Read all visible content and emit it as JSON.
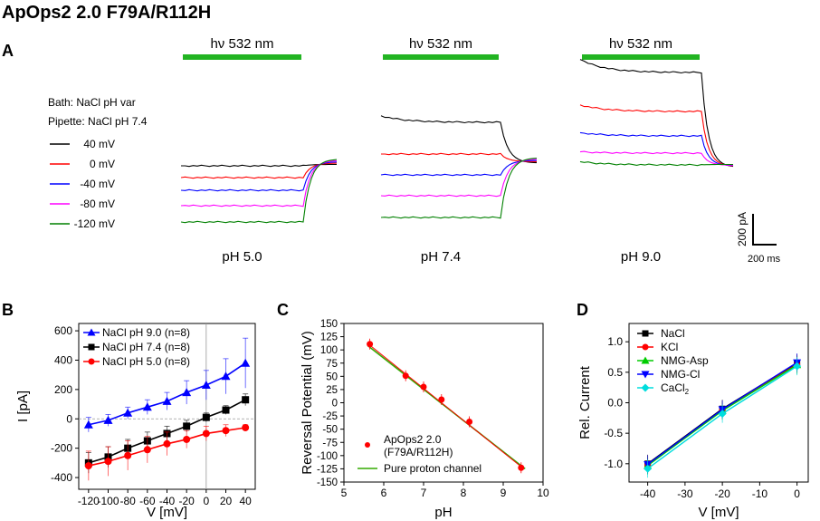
{
  "title": "ApOps2 2.0 F79A/R112H",
  "panelA": {
    "label": "A",
    "light_label": "hν 532 nm",
    "bath": "Bath: NaCl pH var",
    "pipette": "Pipette: NaCl pH 7.4",
    "legend": [
      {
        "label": "40 mV",
        "color": "#000000"
      },
      {
        "label": "0 mV",
        "color": "#ff0000"
      },
      {
        "label": "-40 mV",
        "color": "#0000ff"
      },
      {
        "label": "-80 mV",
        "color": "#ff00ff"
      },
      {
        "label": "-120 mV",
        "color": "#008000"
      }
    ],
    "ph_labels": [
      "pH 5.0",
      "pH 7.4",
      "pH 9.0"
    ],
    "scale_y": "200 pA",
    "scale_x": "200 ms",
    "traces": [
      {
        "ph": "pH 5.0",
        "ss": [
          5,
          -10,
          -25,
          -40,
          -55
        ],
        "peak": [
          5,
          -10,
          -25,
          -40,
          -55
        ],
        "end": [
          5,
          0,
          -5,
          -10,
          -15
        ]
      },
      {
        "ph": "pH 7.4",
        "ss": [
          50,
          20,
          -5,
          -30,
          -55
        ],
        "peak": [
          60,
          20,
          -5,
          -30,
          -55
        ],
        "end": [
          10,
          5,
          0,
          -5,
          -10
        ]
      },
      {
        "ph": "pH 9.0",
        "ss": [
          80,
          45,
          25,
          10,
          -5
        ],
        "peak": [
          100,
          55,
          30,
          12,
          0
        ],
        "end": [
          5,
          2,
          0,
          -2,
          -5
        ]
      }
    ]
  },
  "chart_data": [
    {
      "type": "line",
      "panel": "B",
      "xlabel": "V [mV]",
      "ylabel": "I [pA]",
      "xlim": [
        -130,
        50
      ],
      "ylim": [
        -480,
        650
      ],
      "xticks": [
        "-120",
        "-100",
        "-80",
        "-60",
        "-40",
        "-20",
        "0",
        "20",
        "40"
      ],
      "yticks": [
        "-400",
        "-200",
        "0",
        "200",
        "400",
        "600"
      ],
      "x": [
        -120,
        -100,
        -80,
        -60,
        -40,
        -20,
        0,
        20,
        40
      ],
      "series": [
        {
          "name": "NaCl pH 9.0 (n=8)",
          "color": "#0000ff",
          "marker": "triangle",
          "values": [
            -40,
            -10,
            40,
            80,
            120,
            180,
            230,
            290,
            380
          ],
          "err": [
            50,
            40,
            40,
            50,
            60,
            80,
            100,
            120,
            170
          ]
        },
        {
          "name": "NaCl pH 7.4 (n=8)",
          "color": "#000000",
          "marker": "square",
          "values": [
            -300,
            -260,
            -200,
            -150,
            -100,
            -50,
            10,
            60,
            130
          ],
          "err": [
            70,
            70,
            60,
            60,
            50,
            40,
            30,
            30,
            40
          ]
        },
        {
          "name": "NaCl pH 5.0 (n=8)",
          "color": "#ff0000",
          "marker": "circle",
          "values": [
            -320,
            -290,
            -250,
            -210,
            -170,
            -140,
            -100,
            -80,
            -60
          ],
          "err": [
            100,
            100,
            100,
            90,
            80,
            60,
            50,
            40,
            20
          ]
        }
      ]
    },
    {
      "type": "scatter",
      "panel": "C",
      "xlabel": "pH",
      "ylabel": "Reversal Potential (mV)",
      "xlim": [
        5,
        10
      ],
      "ylim": [
        -150,
        150
      ],
      "xticks": [
        "5",
        "6",
        "7",
        "8",
        "9",
        "10"
      ],
      "yticks": [
        "-150",
        "-125",
        "-100",
        "-75",
        "-50",
        "-25",
        "0",
        "25",
        "50",
        "75",
        "100",
        "125",
        "150"
      ],
      "points": {
        "name": "ApOps2 2.0",
        "name2": "(F79A/R112H)",
        "color": "#ff0000",
        "x": [
          5.65,
          6.55,
          7.0,
          7.45,
          8.15,
          9.45
        ],
        "y": [
          111,
          51,
          30,
          6,
          -36,
          -123
        ]
      },
      "fit": {
        "name": "Pure proton channel",
        "color": "#33aa00",
        "x": [
          5.6,
          9.55
        ],
        "y": [
          108,
          -125
        ]
      },
      "fit2": {
        "color": "#ff0000",
        "x": [
          5.6,
          9.5
        ],
        "y": [
          112,
          -124
        ]
      }
    },
    {
      "type": "line",
      "panel": "D",
      "xlabel": "V [mV]",
      "ylabel": "Rel. Current",
      "xlim": [
        -45,
        3
      ],
      "ylim": [
        -1.3,
        1.3
      ],
      "xticks": [
        "-40",
        "-30",
        "-20",
        "-10",
        "0"
      ],
      "yticks": [
        "-1.0",
        "-0.5",
        "0.0",
        "0.5",
        "1.0"
      ],
      "x": [
        -40,
        -20,
        0
      ],
      "series": [
        {
          "name": "NaCl",
          "color": "#000000",
          "marker": "square",
          "values": [
            -1.0,
            -0.1,
            0.65
          ]
        },
        {
          "name": "KCl",
          "color": "#ff0000",
          "marker": "circle",
          "values": [
            -1.02,
            -0.12,
            0.63
          ]
        },
        {
          "name": "NMG-Asp",
          "color": "#00cc00",
          "marker": "triangle",
          "values": [
            -1.03,
            -0.13,
            0.62
          ]
        },
        {
          "name": "NMG-Cl",
          "color": "#0000ff",
          "marker": "triangle-down",
          "values": [
            -1.01,
            -0.11,
            0.66
          ]
        },
        {
          "name": "CaCl",
          "sub": "2",
          "color": "#00dddd",
          "marker": "diamond",
          "values": [
            -1.08,
            -0.18,
            0.6
          ]
        }
      ]
    }
  ],
  "panel_labels": {
    "B": "B",
    "C": "C",
    "D": "D"
  }
}
